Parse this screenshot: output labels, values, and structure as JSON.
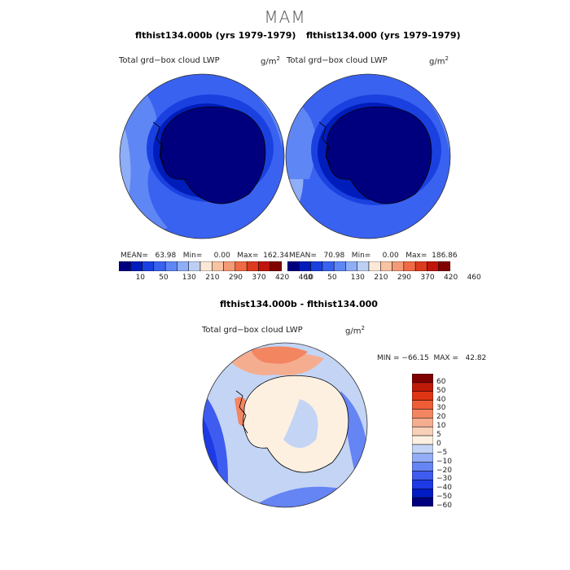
{
  "figure": {
    "season": "MAM",
    "variable": "Total grd−box cloud LWP",
    "units_base": "g/m",
    "units_exp": "2"
  },
  "colors": {
    "abs_scale": [
      "#00007f",
      "#001dbb",
      "#1a41e0",
      "#3a62f0",
      "#5e86f5",
      "#8eaef7",
      "#bdd0f4",
      "#fce8d6",
      "#f8c3a4",
      "#f59a76",
      "#f06a45",
      "#dd3b1e",
      "#c0150c",
      "#800000"
    ],
    "diff_scale": [
      "#00007f",
      "#001cc4",
      "#1d3ae5",
      "#3f5cf0",
      "#6585f4",
      "#94adf6",
      "#c3d4f5",
      "#fdf0e1",
      "#f8d0b8",
      "#f5ad8f",
      "#f38560",
      "#ee5d36",
      "#e03514",
      "#bf1a08",
      "#800000"
    ]
  },
  "panels": {
    "left": {
      "title": "flthist134.000b (yrs 1979-1979)",
      "stats": "MEAN=   63.98   Min=     0.00   Max=  162.34"
    },
    "right": {
      "title": "flthist134.000 (yrs 1979-1979)",
      "stats": "MEAN=   70.98   Min=     0.00   Max=  186.86"
    },
    "diff": {
      "title": "flthist134.000b - flthist134.000",
      "stats": "MIN = −66.15  MAX =   42.82"
    }
  },
  "chart_data": [
    {
      "type": "heatmap",
      "projection": "south polar stereographic",
      "title": "flthist134.000b (yrs 1979-1979)",
      "variable": "Total grd-box cloud LWP",
      "units": "g/m2",
      "mean": 63.98,
      "min": 0.0,
      "max": 162.34,
      "colorbar_ticks": [
        "10",
        "50",
        "130",
        "210",
        "290",
        "370",
        "420",
        "460"
      ]
    },
    {
      "type": "heatmap",
      "projection": "south polar stereographic",
      "title": "flthist134.000 (yrs 1979-1979)",
      "variable": "Total grd-box cloud LWP",
      "units": "g/m2",
      "mean": 70.98,
      "min": 0.0,
      "max": 186.86,
      "colorbar_ticks": [
        "10",
        "50",
        "130",
        "210",
        "290",
        "370",
        "420",
        "460"
      ]
    },
    {
      "type": "heatmap",
      "projection": "south polar stereographic",
      "title": "flthist134.000b - flthist134.000",
      "variable": "Total grd-box cloud LWP",
      "units": "g/m2",
      "min": -66.15,
      "max": 42.82,
      "colorbar_levels": [
        "60",
        "50",
        "40",
        "30",
        "20",
        "10",
        "5",
        "0",
        "−5",
        "−10",
        "−20",
        "−30",
        "−40",
        "−50",
        "−60"
      ]
    }
  ]
}
